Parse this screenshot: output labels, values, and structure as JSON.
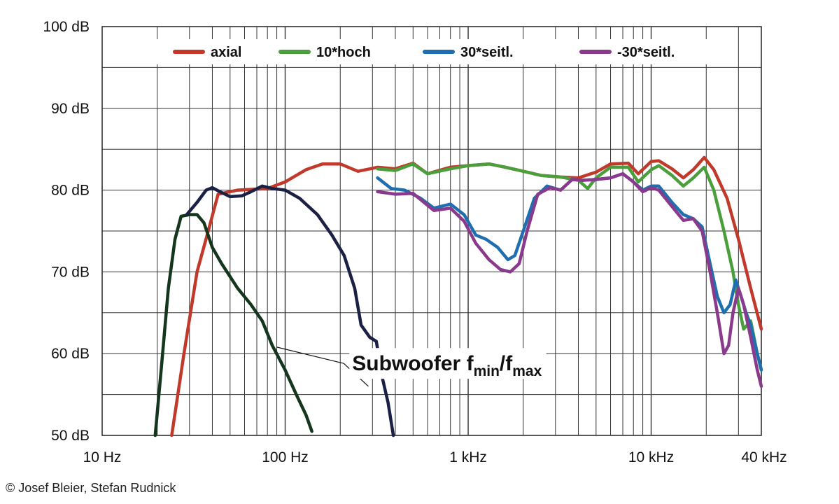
{
  "chart_data": {
    "type": "line",
    "x_scale": "log",
    "xlim": [
      10,
      40000
    ],
    "ylim": [
      50,
      100
    ],
    "grid": true,
    "legend_position": "top",
    "y_ticks": [
      {
        "value": 100,
        "label": "100 dB"
      },
      {
        "value": 90,
        "label": "90 dB"
      },
      {
        "value": 80,
        "label": "80 dB"
      },
      {
        "value": 70,
        "label": "70 dB"
      },
      {
        "value": 60,
        "label": "60 dB"
      },
      {
        "value": 50,
        "label": "50 dB"
      }
    ],
    "x_ticks": [
      {
        "value": 10,
        "label": "10 Hz"
      },
      {
        "value": 100,
        "label": "100 Hz"
      },
      {
        "value": 1000,
        "label": "1 kHz"
      },
      {
        "value": 10000,
        "label": "10 kHz"
      },
      {
        "value": 40000,
        "label": "40 kHz"
      }
    ],
    "series": [
      {
        "name": "axial",
        "color": "#c0392b",
        "legend": true,
        "points": [
          [
            24,
            50
          ],
          [
            28,
            60
          ],
          [
            33,
            70
          ],
          [
            38,
            75
          ],
          [
            43,
            79.5
          ],
          [
            55,
            80
          ],
          [
            80,
            80.2
          ],
          [
            100,
            81
          ],
          [
            130,
            82.5
          ],
          [
            160,
            83.2
          ],
          [
            200,
            83.2
          ],
          [
            250,
            82.3
          ],
          [
            320,
            82.8
          ],
          [
            400,
            82.6
          ],
          [
            500,
            83.3
          ],
          [
            600,
            82
          ],
          [
            800,
            82.8
          ],
          [
            1000,
            83
          ],
          [
            1300,
            83.2
          ],
          [
            1600,
            82.8
          ],
          [
            2000,
            82.3
          ],
          [
            2500,
            81.8
          ],
          [
            3200,
            81.6
          ],
          [
            4000,
            81.5
          ],
          [
            5000,
            82.2
          ],
          [
            6000,
            83.2
          ],
          [
            7500,
            83.3
          ],
          [
            8500,
            82
          ],
          [
            10000,
            83.5
          ],
          [
            11000,
            83.6
          ],
          [
            13000,
            82.6
          ],
          [
            15000,
            81.5
          ],
          [
            17000,
            82.5
          ],
          [
            19500,
            84
          ],
          [
            22000,
            82.5
          ],
          [
            26000,
            79
          ],
          [
            30000,
            74
          ],
          [
            35000,
            68
          ],
          [
            40000,
            63
          ]
        ]
      },
      {
        "name": "10*hoch",
        "color": "#4a9e3c",
        "legend": true,
        "points": [
          [
            320,
            82.6
          ],
          [
            400,
            82.4
          ],
          [
            500,
            83.2
          ],
          [
            600,
            82
          ],
          [
            800,
            82.6
          ],
          [
            1000,
            83
          ],
          [
            1300,
            83.2
          ],
          [
            1600,
            82.8
          ],
          [
            2000,
            82.3
          ],
          [
            2500,
            81.8
          ],
          [
            3200,
            81.6
          ],
          [
            4000,
            81.2
          ],
          [
            4500,
            80.2
          ],
          [
            5000,
            81.5
          ],
          [
            6000,
            82.8
          ],
          [
            7500,
            82.8
          ],
          [
            8500,
            81
          ],
          [
            10000,
            82.5
          ],
          [
            11000,
            83
          ],
          [
            13000,
            81.8
          ],
          [
            15000,
            80.5
          ],
          [
            17000,
            81.5
          ],
          [
            19500,
            82.8
          ],
          [
            22000,
            80
          ],
          [
            25000,
            75
          ],
          [
            28000,
            70
          ],
          [
            30000,
            66
          ],
          [
            32000,
            63
          ],
          [
            35000,
            64
          ],
          [
            38000,
            60
          ],
          [
            40000,
            58
          ]
        ]
      },
      {
        "name": "30*seitl.",
        "color": "#1f6fb0",
        "legend": true,
        "points": [
          [
            320,
            81.5
          ],
          [
            380,
            80.2
          ],
          [
            450,
            80
          ],
          [
            550,
            79
          ],
          [
            650,
            77.8
          ],
          [
            800,
            78.3
          ],
          [
            950,
            77
          ],
          [
            1100,
            74.5
          ],
          [
            1250,
            74
          ],
          [
            1450,
            73
          ],
          [
            1650,
            71.5
          ],
          [
            1800,
            72
          ],
          [
            2000,
            75
          ],
          [
            2300,
            79
          ],
          [
            2700,
            80.5
          ],
          [
            3200,
            80
          ],
          [
            3700,
            81.3
          ],
          [
            4200,
            81.2
          ],
          [
            5000,
            81.3
          ],
          [
            6000,
            81.5
          ],
          [
            7000,
            82
          ],
          [
            8000,
            81
          ],
          [
            9000,
            80
          ],
          [
            10000,
            80.5
          ],
          [
            11000,
            80.5
          ],
          [
            13000,
            78.5
          ],
          [
            15000,
            77
          ],
          [
            17000,
            76.5
          ],
          [
            19000,
            75.5
          ],
          [
            21000,
            71
          ],
          [
            23000,
            67
          ],
          [
            25000,
            65
          ],
          [
            27000,
            66
          ],
          [
            29000,
            69
          ],
          [
            31000,
            67
          ],
          [
            33000,
            65
          ],
          [
            35000,
            63.5
          ],
          [
            38000,
            60
          ],
          [
            40000,
            58
          ]
        ]
      },
      {
        "name": "-30*seitl.",
        "color": "#8a3a8c",
        "legend": true,
        "points": [
          [
            320,
            79.8
          ],
          [
            400,
            79.5
          ],
          [
            500,
            79.6
          ],
          [
            650,
            77.5
          ],
          [
            800,
            77.8
          ],
          [
            950,
            76.2
          ],
          [
            1100,
            73.5
          ],
          [
            1300,
            71.5
          ],
          [
            1500,
            70.3
          ],
          [
            1700,
            70
          ],
          [
            1900,
            71
          ],
          [
            2100,
            75
          ],
          [
            2400,
            79.5
          ],
          [
            2800,
            80.3
          ],
          [
            3200,
            80
          ],
          [
            3700,
            81.3
          ],
          [
            4200,
            81.2
          ],
          [
            5000,
            81.3
          ],
          [
            6000,
            81.5
          ],
          [
            7000,
            82
          ],
          [
            8000,
            81
          ],
          [
            9000,
            79.8
          ],
          [
            10000,
            80.3
          ],
          [
            11000,
            80
          ],
          [
            13000,
            78
          ],
          [
            15000,
            76.3
          ],
          [
            17000,
            76.5
          ],
          [
            19000,
            75
          ],
          [
            21000,
            70
          ],
          [
            23000,
            65
          ],
          [
            25000,
            60
          ],
          [
            26500,
            61
          ],
          [
            28000,
            65
          ],
          [
            30000,
            68
          ],
          [
            32000,
            66
          ],
          [
            35000,
            62
          ],
          [
            38000,
            58
          ],
          [
            40000,
            56
          ]
        ]
      },
      {
        "name": "",
        "color": "#13361c",
        "legend": false,
        "points": [
          [
            19.5,
            50
          ],
          [
            21,
            58
          ],
          [
            23,
            68
          ],
          [
            25,
            74
          ],
          [
            27,
            76.8
          ],
          [
            30,
            77
          ],
          [
            33,
            77
          ],
          [
            36,
            76
          ],
          [
            40,
            73
          ],
          [
            45,
            71
          ],
          [
            55,
            68
          ],
          [
            65,
            66
          ],
          [
            75,
            64
          ],
          [
            85,
            61
          ],
          [
            100,
            58
          ],
          [
            115,
            55
          ],
          [
            130,
            52.5
          ],
          [
            140,
            50.5
          ]
        ]
      },
      {
        "name": "",
        "color": "#1a2144",
        "legend": false,
        "points": [
          [
            29,
            77
          ],
          [
            33,
            78.5
          ],
          [
            37,
            80
          ],
          [
            40,
            80.3
          ],
          [
            44,
            79.8
          ],
          [
            50,
            79.2
          ],
          [
            58,
            79.3
          ],
          [
            65,
            79.8
          ],
          [
            75,
            80.5
          ],
          [
            85,
            80.2
          ],
          [
            100,
            80
          ],
          [
            120,
            79
          ],
          [
            150,
            77
          ],
          [
            180,
            74.5
          ],
          [
            210,
            72
          ],
          [
            240,
            68
          ],
          [
            260,
            63.5
          ],
          [
            290,
            62
          ],
          [
            315,
            61.5
          ],
          [
            340,
            57
          ],
          [
            365,
            54
          ],
          [
            390,
            50
          ]
        ]
      }
    ],
    "annotation": {
      "main": "Subwoofer f",
      "sub1": "min",
      "slash": "/f",
      "sub2": "max",
      "x": 200,
      "y": 58.8,
      "targets": [
        [
          90,
          60.8
        ],
        [
          285,
          56
        ]
      ]
    }
  },
  "legend_items": [
    {
      "label": "axial",
      "color": "#c0392b"
    },
    {
      "label": "10*hoch",
      "color": "#4a9e3c"
    },
    {
      "label": "30*seitl.",
      "color": "#1f6fb0"
    },
    {
      "label": "-30*seitl.",
      "color": "#8a3a8c"
    }
  ],
  "copyright": "© Josef Bleier, Stefan Rudnick"
}
